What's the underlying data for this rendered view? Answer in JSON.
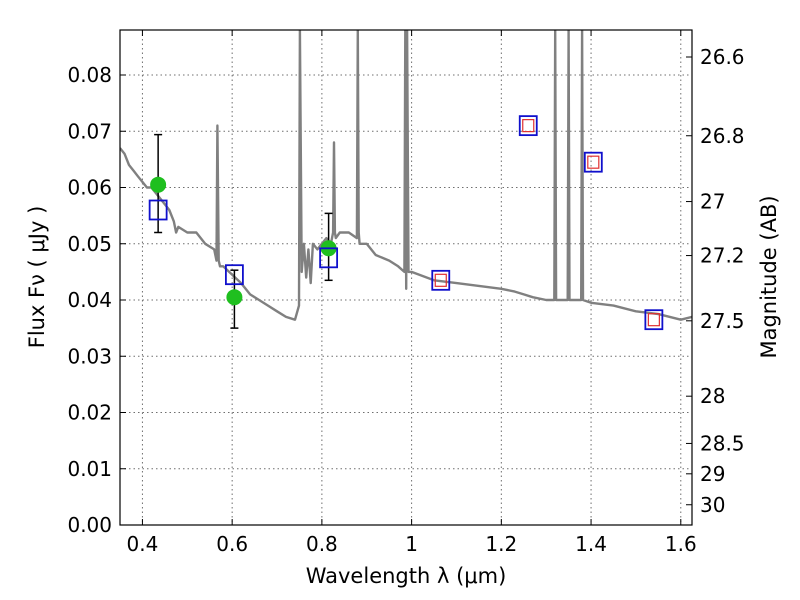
{
  "chart_data": {
    "type": "scatter",
    "title": "",
    "xlabel": "Wavelength  λ (μm)",
    "ylabel": "Flux  Fν  ( μJy )",
    "ylabel_right": "Magnitude (AB)",
    "xlim": [
      0.35,
      1.625
    ],
    "ylim": [
      0.0,
      0.088
    ],
    "xticks": [
      0.4,
      0.6,
      0.8,
      1.0,
      1.2,
      1.4,
      1.6
    ],
    "xtick_labels": [
      "0.4",
      "0.6",
      "0.8",
      "1",
      "1.2",
      "1.4",
      "1.6"
    ],
    "yticks": [
      0.0,
      0.01,
      0.02,
      0.03,
      0.04,
      0.05,
      0.06,
      0.07,
      0.08
    ],
    "ytick_labels": [
      "0.00",
      "0.01",
      "0.02",
      "0.03",
      "0.04",
      "0.05",
      "0.06",
      "0.07",
      "0.08"
    ],
    "right_ticks": [
      {
        "label": "26.6",
        "flux": 0.0832
      },
      {
        "label": "26.8",
        "flux": 0.0692
      },
      {
        "label": "27",
        "flux": 0.0575
      },
      {
        "label": "27.2",
        "flux": 0.0479
      },
      {
        "label": "27.5",
        "flux": 0.0363
      },
      {
        "label": "28",
        "flux": 0.0229
      },
      {
        "label": "28.5",
        "flux": 0.0145
      },
      {
        "label": "29",
        "flux": 0.0091
      },
      {
        "label": "30",
        "flux": 0.0036
      }
    ],
    "grid": true,
    "series": [
      {
        "kind": "line",
        "color": "#808080",
        "x": [
          0.35,
          0.36,
          0.37,
          0.38,
          0.39,
          0.4,
          0.41,
          0.42,
          0.43,
          0.44,
          0.45,
          0.46,
          0.47,
          0.475,
          0.48,
          0.5,
          0.52,
          0.54,
          0.56,
          0.565,
          0.567,
          0.57,
          0.573,
          0.58,
          0.6,
          0.62,
          0.64,
          0.66,
          0.68,
          0.7,
          0.72,
          0.74,
          0.749,
          0.751,
          0.755,
          0.76,
          0.765,
          0.77,
          0.775,
          0.78,
          0.79,
          0.8,
          0.81,
          0.82,
          0.825,
          0.827,
          0.829,
          0.831,
          0.84,
          0.86,
          0.878,
          0.88,
          0.882,
          0.884,
          0.9,
          0.92,
          0.95,
          0.97,
          0.984,
          0.986,
          0.988,
          0.99,
          0.993,
          1.0,
          1.05,
          1.1,
          1.15,
          1.2,
          1.23,
          1.25,
          1.27,
          1.3,
          1.318,
          1.32,
          1.322,
          1.34,
          1.348,
          1.35,
          1.352,
          1.37,
          1.378,
          1.38,
          1.382,
          1.4,
          1.45,
          1.5,
          1.55,
          1.6,
          1.625
        ],
        "y": [
          0.067,
          0.066,
          0.064,
          0.063,
          0.062,
          0.061,
          0.06,
          0.06,
          0.059,
          0.058,
          0.057,
          0.056,
          0.054,
          0.052,
          0.053,
          0.052,
          0.052,
          0.05,
          0.049,
          0.047,
          0.071,
          0.047,
          0.046,
          0.046,
          0.0445,
          0.043,
          0.041,
          0.04,
          0.039,
          0.038,
          0.037,
          0.0365,
          0.039,
          0.088,
          0.045,
          0.05,
          0.044,
          0.049,
          0.043,
          0.05,
          0.049,
          0.05,
          0.051,
          0.05,
          0.052,
          0.068,
          0.052,
          0.051,
          0.052,
          0.052,
          0.051,
          0.088,
          0.052,
          0.05,
          0.05,
          0.048,
          0.047,
          0.046,
          0.045,
          0.088,
          0.042,
          0.088,
          0.045,
          0.045,
          0.0435,
          0.043,
          0.0425,
          0.042,
          0.0415,
          0.041,
          0.0405,
          0.04,
          0.04,
          0.088,
          0.04,
          0.04,
          0.04,
          0.088,
          0.04,
          0.04,
          0.04,
          0.088,
          0.04,
          0.0395,
          0.039,
          0.038,
          0.0375,
          0.0365,
          0.037
        ]
      },
      {
        "kind": "points",
        "color": "#1fbf1f",
        "x": [
          0.435,
          0.605,
          0.815
        ],
        "y": [
          0.0605,
          0.0405,
          0.0492
        ],
        "yerr_low": [
          0.0085,
          0.0055,
          0.0057
        ],
        "yerr_high": [
          0.0089,
          0.0048,
          0.0062
        ]
      },
      {
        "kind": "open-squares",
        "color": "#1010cc",
        "x": [
          0.435,
          0.605,
          0.815,
          1.065,
          1.26,
          1.405,
          1.54
        ],
        "y": [
          0.056,
          0.0445,
          0.0475,
          0.0435,
          0.071,
          0.0645,
          0.0365
        ]
      },
      {
        "kind": "small-squares",
        "color": "#e03030",
        "x": [
          1.065,
          1.26,
          1.405,
          1.54
        ],
        "y": [
          0.0435,
          0.071,
          0.0645,
          0.0365
        ]
      }
    ]
  }
}
